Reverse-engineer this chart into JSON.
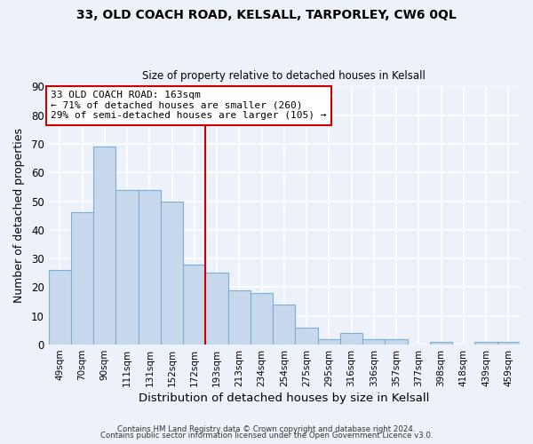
{
  "title1": "33, OLD COACH ROAD, KELSALL, TARPORLEY, CW6 0QL",
  "title2": "Size of property relative to detached houses in Kelsall",
  "xlabel": "Distribution of detached houses by size in Kelsall",
  "ylabel": "Number of detached properties",
  "categories": [
    "49sqm",
    "70sqm",
    "90sqm",
    "111sqm",
    "131sqm",
    "152sqm",
    "172sqm",
    "193sqm",
    "213sqm",
    "234sqm",
    "254sqm",
    "275sqm",
    "295sqm",
    "316sqm",
    "336sqm",
    "357sqm",
    "377sqm",
    "398sqm",
    "418sqm",
    "439sqm",
    "459sqm"
  ],
  "values": [
    26,
    46,
    69,
    54,
    54,
    50,
    28,
    25,
    19,
    18,
    14,
    6,
    2,
    4,
    2,
    2,
    0,
    1,
    0,
    1,
    1
  ],
  "bar_color": "#c8d8ec",
  "bar_edge_color": "#7baed4",
  "highlight_line_color": "#cc0000",
  "annotation_title": "33 OLD COACH ROAD: 163sqm",
  "annotation_line1": "← 71% of detached houses are smaller (260)",
  "annotation_line2": "29% of semi-detached houses are larger (105) →",
  "annotation_box_edge": "#cc0000",
  "ylim": [
    0,
    90
  ],
  "yticks": [
    0,
    10,
    20,
    30,
    40,
    50,
    60,
    70,
    80,
    90
  ],
  "footer1": "Contains HM Land Registry data © Crown copyright and database right 2024.",
  "footer2": "Contains public sector information licensed under the Open Government Licence v3.0.",
  "bg_color": "#edf2fa",
  "plot_bg_color": "#edf2fa",
  "grid_color": "#ffffff"
}
